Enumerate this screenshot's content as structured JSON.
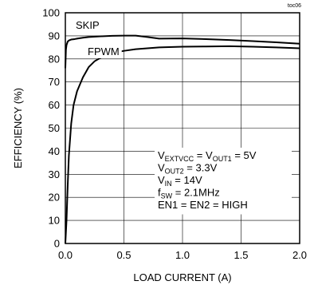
{
  "figure_code": "toc06",
  "chart_data": {
    "type": "line",
    "title": "",
    "xlabel": "LOAD CURRENT (A)",
    "ylabel": "EFFICIENCY (%)",
    "xlim": [
      0,
      2.0
    ],
    "ylim": [
      0,
      100
    ],
    "x_ticks": [
      "0.0",
      "0.5",
      "1.0",
      "1.5",
      "2.0"
    ],
    "y_ticks": [
      "0",
      "10",
      "20",
      "30",
      "40",
      "50",
      "60",
      "70",
      "80",
      "90",
      "100"
    ],
    "grid": true,
    "series": [
      {
        "name": "SKIP",
        "x": [
          0.0,
          0.005,
          0.01,
          0.02,
          0.03,
          0.05,
          0.08,
          0.1,
          0.15,
          0.2,
          0.3,
          0.4,
          0.5,
          0.6,
          0.7,
          0.8,
          1.0,
          1.2,
          1.4,
          1.6,
          1.8,
          2.0
        ],
        "y": [
          76,
          84,
          86,
          87.5,
          88,
          88.4,
          88.6,
          88.8,
          89.2,
          89.5,
          89.8,
          90.0,
          90.1,
          90.1,
          89.5,
          88.8,
          88.9,
          88.6,
          88.2,
          87.7,
          87.2,
          86.6
        ]
      },
      {
        "name": "FPWM",
        "x": [
          0.0,
          0.01,
          0.02,
          0.03,
          0.05,
          0.07,
          0.1,
          0.15,
          0.2,
          0.25,
          0.3,
          0.4,
          0.5,
          0.6,
          0.8,
          1.0,
          1.2,
          1.4,
          1.6,
          1.8,
          2.0
        ],
        "y": [
          0,
          10,
          25,
          38,
          52,
          60,
          66,
          72,
          76.5,
          79,
          80.5,
          82.5,
          83.5,
          84.2,
          85,
          85.3,
          85.4,
          85.5,
          85.3,
          85.0,
          84.6
        ]
      }
    ],
    "annotation_lines": [
      [
        "V",
        "EXTVCC",
        " = V",
        "OUT1",
        " = 5V"
      ],
      [
        "V",
        "OUT2",
        " = 3.3V"
      ],
      [
        "V",
        "IN",
        " = 14V"
      ],
      [
        "f",
        "SW",
        " = 2.1MHz"
      ],
      [
        "EN1 = EN2 = HIGH"
      ]
    ]
  }
}
